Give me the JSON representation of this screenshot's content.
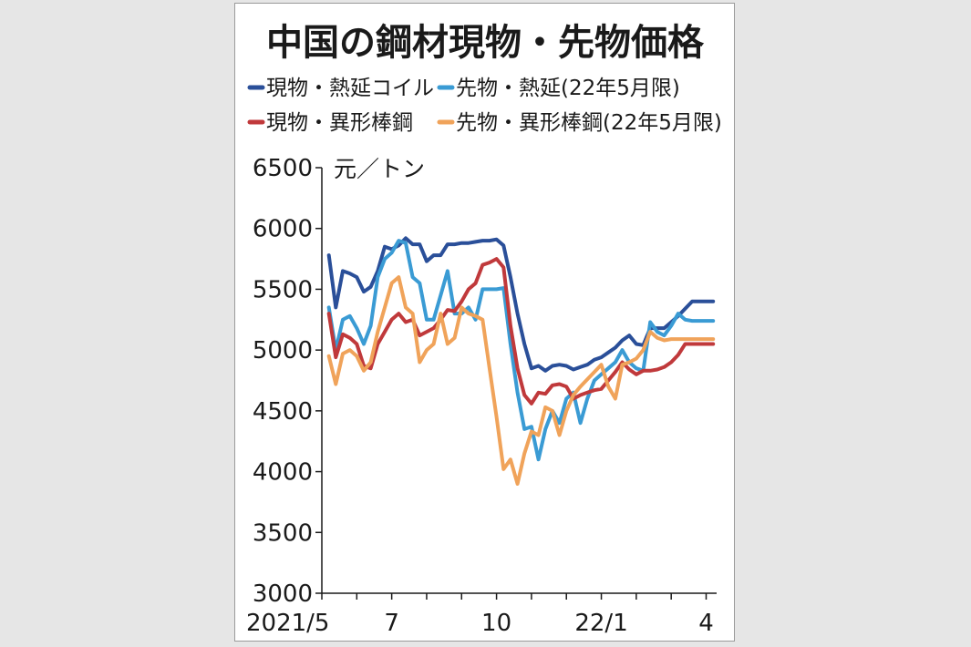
{
  "chart_data": {
    "type": "line",
    "title": "中国の鋼材現物・先物価格",
    "unit": "元／トン",
    "ylim": [
      3000,
      6500
    ],
    "yticks": [
      3000,
      3500,
      4000,
      4500,
      5000,
      5500,
      6000,
      6500
    ],
    "xlim": [
      0,
      11.3
    ],
    "xticks": [
      {
        "x": 0,
        "label": "2021/5"
      },
      {
        "x": 2,
        "label": "7"
      },
      {
        "x": 5,
        "label": "10"
      },
      {
        "x": 8,
        "label": "22/1"
      },
      {
        "x": 11,
        "label": "4"
      }
    ],
    "x": [
      0.2,
      0.4,
      0.6,
      0.8,
      1.0,
      1.2,
      1.4,
      1.6,
      1.8,
      2.0,
      2.2,
      2.4,
      2.6,
      2.8,
      3.0,
      3.2,
      3.4,
      3.6,
      3.8,
      4.0,
      4.2,
      4.4,
      4.6,
      4.8,
      5.0,
      5.2,
      5.4,
      5.6,
      5.8,
      6.0,
      6.2,
      6.4,
      6.6,
      6.8,
      7.0,
      7.2,
      7.4,
      7.6,
      7.8,
      8.0,
      8.2,
      8.4,
      8.6,
      8.8,
      9.0,
      9.2,
      9.4,
      9.6,
      9.8,
      10.0,
      10.2,
      10.4,
      10.6,
      10.8,
      11.0,
      11.2
    ],
    "series": [
      {
        "name": "現物・熱延コイル",
        "color": "#2a4f99",
        "values": [
          5780,
          5350,
          5650,
          5630,
          5600,
          5480,
          5520,
          5650,
          5850,
          5830,
          5860,
          5920,
          5870,
          5870,
          5730,
          5780,
          5780,
          5870,
          5870,
          5880,
          5880,
          5890,
          5900,
          5900,
          5910,
          5860,
          5600,
          5300,
          5050,
          4850,
          4870,
          4830,
          4870,
          4880,
          4870,
          4840,
          4860,
          4880,
          4920,
          4940,
          4980,
          5020,
          5080,
          5120,
          5050,
          5040,
          5180,
          5180,
          5180,
          5230,
          5280,
          5340,
          5400,
          5400,
          5400,
          5400
        ]
      },
      {
        "name": "先物・熱延(22年5月限)",
        "color": "#3a9bd4",
        "values": [
          5350,
          5000,
          5250,
          5280,
          5180,
          5050,
          5200,
          5600,
          5750,
          5800,
          5900,
          5880,
          5600,
          5550,
          5250,
          5250,
          5450,
          5650,
          5300,
          5300,
          5350,
          5250,
          5500,
          5500,
          5500,
          5510,
          5050,
          4650,
          4350,
          4370,
          4100,
          4350,
          4500,
          4400,
          4600,
          4650,
          4400,
          4600,
          4750,
          4800,
          4850,
          4900,
          5000,
          4900,
          4850,
          4830,
          5230,
          5150,
          5120,
          5200,
          5300,
          5250,
          5240,
          5240,
          5240,
          5240
        ]
      },
      {
        "name": "現物・異形棒鋼",
        "color": "#c0393b",
        "values": [
          5300,
          4940,
          5130,
          5100,
          5050,
          4870,
          4850,
          5050,
          5150,
          5250,
          5300,
          5230,
          5250,
          5120,
          5150,
          5180,
          5250,
          5330,
          5320,
          5400,
          5500,
          5550,
          5700,
          5720,
          5750,
          5680,
          5200,
          4850,
          4630,
          4560,
          4650,
          4640,
          4710,
          4720,
          4700,
          4600,
          4630,
          4650,
          4670,
          4680,
          4750,
          4820,
          4900,
          4840,
          4800,
          4830,
          4830,
          4840,
          4860,
          4900,
          4960,
          5050,
          5050,
          5050,
          5050,
          5050
        ]
      },
      {
        "name": "先物・異形棒鋼(22年5月限)",
        "color": "#f0a35a",
        "values": [
          4950,
          4720,
          4970,
          5000,
          4950,
          4830,
          4900,
          5150,
          5350,
          5550,
          5600,
          5350,
          5300,
          4900,
          5000,
          5050,
          5300,
          5050,
          5100,
          5350,
          5300,
          5280,
          5250,
          4850,
          4450,
          4020,
          4100,
          3900,
          4150,
          4330,
          4300,
          4530,
          4500,
          4300,
          4500,
          4630,
          4700,
          4760,
          4820,
          4880,
          4700,
          4600,
          4880,
          4900,
          4930,
          5000,
          5150,
          5100,
          5080,
          5090,
          5090,
          5090,
          5090,
          5090,
          5090,
          5090
        ]
      }
    ],
    "grid": false,
    "legend_placement": "top"
  }
}
